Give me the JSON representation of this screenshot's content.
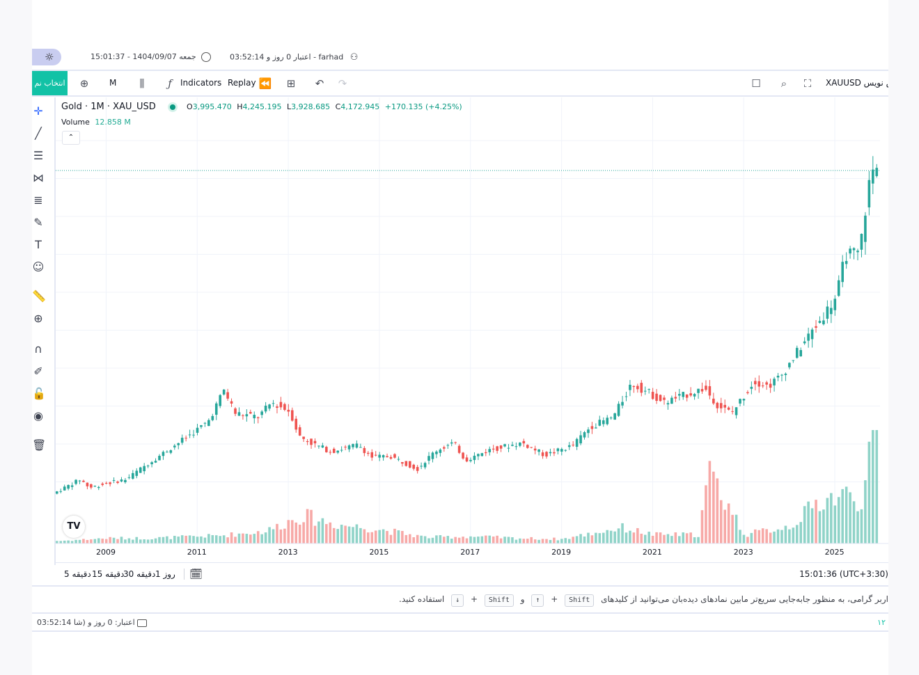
{
  "top_info": {
    "datetime": "15:01:37 - 1404/09/07 جمعه",
    "user": "03:52:14 اعتبار 0 روز و - farhad"
  },
  "toolbar": {
    "teal_button": "انتخاب نم",
    "interval": "M",
    "indicators": "Indicators",
    "replay": "Replay",
    "symbol": "XAUUSD پیش نویس"
  },
  "legend": {
    "title": "Gold · 1M · XAU_USD",
    "o_label": "O",
    "o_value": "3,995.470",
    "h_label": "H",
    "h_value": "4,245.195",
    "l_label": "L",
    "l_value": "3,928.685",
    "c_label": "C",
    "c_value": "4,172.945",
    "change": "+170.135 (+4.25%)",
    "volume_label": "Volume",
    "volume_value": "12.858 M"
  },
  "chart_data": {
    "type": "candlestick",
    "title": "Gold · 1M · XAU_USD",
    "x_ticks": [
      "2009",
      "2011",
      "2013",
      "2015",
      "2017",
      "2019",
      "2021",
      "2023",
      "2025"
    ],
    "x_range": [
      2007.9,
      2026.0
    ],
    "y_range": [
      650,
      4500
    ],
    "y_axis_visible": false,
    "grid": true,
    "last_price": 4172.945,
    "up_color": "#26a69a",
    "down_color": "#ef5350",
    "series": [
      {
        "name": "price",
        "x": [
          2007.9,
          2008.5,
          2008.7,
          2009.0,
          2009.5,
          2010.0,
          2010.8,
          2011.3,
          2011.65,
          2011.9,
          2012.4,
          2012.7,
          2013.1,
          2013.3,
          2013.6,
          2014.0,
          2014.6,
          2014.9,
          2015.3,
          2015.9,
          2016.3,
          2016.7,
          2016.95,
          2017.5,
          2018.2,
          2018.7,
          2019.3,
          2019.7,
          2020.2,
          2020.6,
          2021.0,
          2021.3,
          2021.6,
          2022.2,
          2022.5,
          2022.8,
          2023.3,
          2023.6,
          2023.9,
          2024.3,
          2024.8,
          2025.1,
          2025.3,
          2025.6,
          2025.8,
          2025.9
        ],
        "y": [
          800,
          950,
          860,
          900,
          950,
          1120,
          1380,
          1550,
          1880,
          1640,
          1600,
          1750,
          1660,
          1400,
          1320,
          1240,
          1310,
          1180,
          1190,
          1060,
          1250,
          1330,
          1150,
          1260,
          1330,
          1200,
          1300,
          1500,
          1600,
          1950,
          1850,
          1750,
          1800,
          1900,
          1720,
          1640,
          1980,
          1920,
          2040,
          2320,
          2650,
          2860,
          3300,
          3300,
          4000,
          4173
        ]
      },
      {
        "name": "volume_m",
        "x": [
          2008.0,
          2009.0,
          2010.0,
          2011.5,
          2012.5,
          2013.3,
          2014.0,
          2015.0,
          2016.0,
          2017.0,
          2018.0,
          2019.0,
          2020.3,
          2021.0,
          2022.0,
          2022.2,
          2022.6,
          2023.0,
          2024.0,
          2024.7,
          2025.2,
          2025.6,
          2025.85
        ],
        "y": [
          0.3,
          0.6,
          0.6,
          0.9,
          1.4,
          3.2,
          2.2,
          1.6,
          0.7,
          0.8,
          0.6,
          0.5,
          1.8,
          1.0,
          1.0,
          8.0,
          4.8,
          1.0,
          2.0,
          5.0,
          5.5,
          5.0,
          12.858
        ]
      }
    ]
  },
  "bottombar": {
    "ranges": [
      "5 دقیقه",
      "15 دقیقه",
      "30 دقیقه",
      "1 روز"
    ],
    "clock": "15:01:36 (UTC+3:30)"
  },
  "hint": {
    "text_start": "اربر گرامی، به منظور جابه‌جایی سریع‌تر مابین نمادهای دیده‌بان می‌توانید از کلیدهای",
    "key_shift": "Shift",
    "plus": "+",
    "up_arrow": "↑",
    "and": "و",
    "down_arrow": "↓",
    "text_end": "استفاده کنید."
  },
  "status": {
    "left": "03:52:14 اعتبار: 0 روز و (شا",
    "right": "۱۲"
  }
}
